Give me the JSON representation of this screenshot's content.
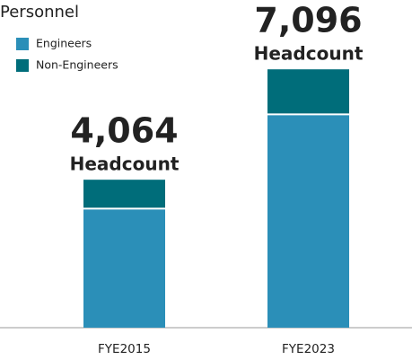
{
  "chart_data": {
    "type": "stacked_bar",
    "title": "Personnel",
    "categories": [
      "FYE2015",
      "FYE2023"
    ],
    "series": [
      {
        "name": "Engineers",
        "color": "#2b8fb8",
        "values": [
          3270,
          5860
        ]
      },
      {
        "name": "Non-Engineers",
        "color": "#006d7a",
        "values": [
          794,
          1236
        ]
      }
    ],
    "total_labels": [
      "4,064",
      "7,096"
    ],
    "total_caption": "Headcount",
    "ylim": [
      0,
      9000
    ]
  }
}
